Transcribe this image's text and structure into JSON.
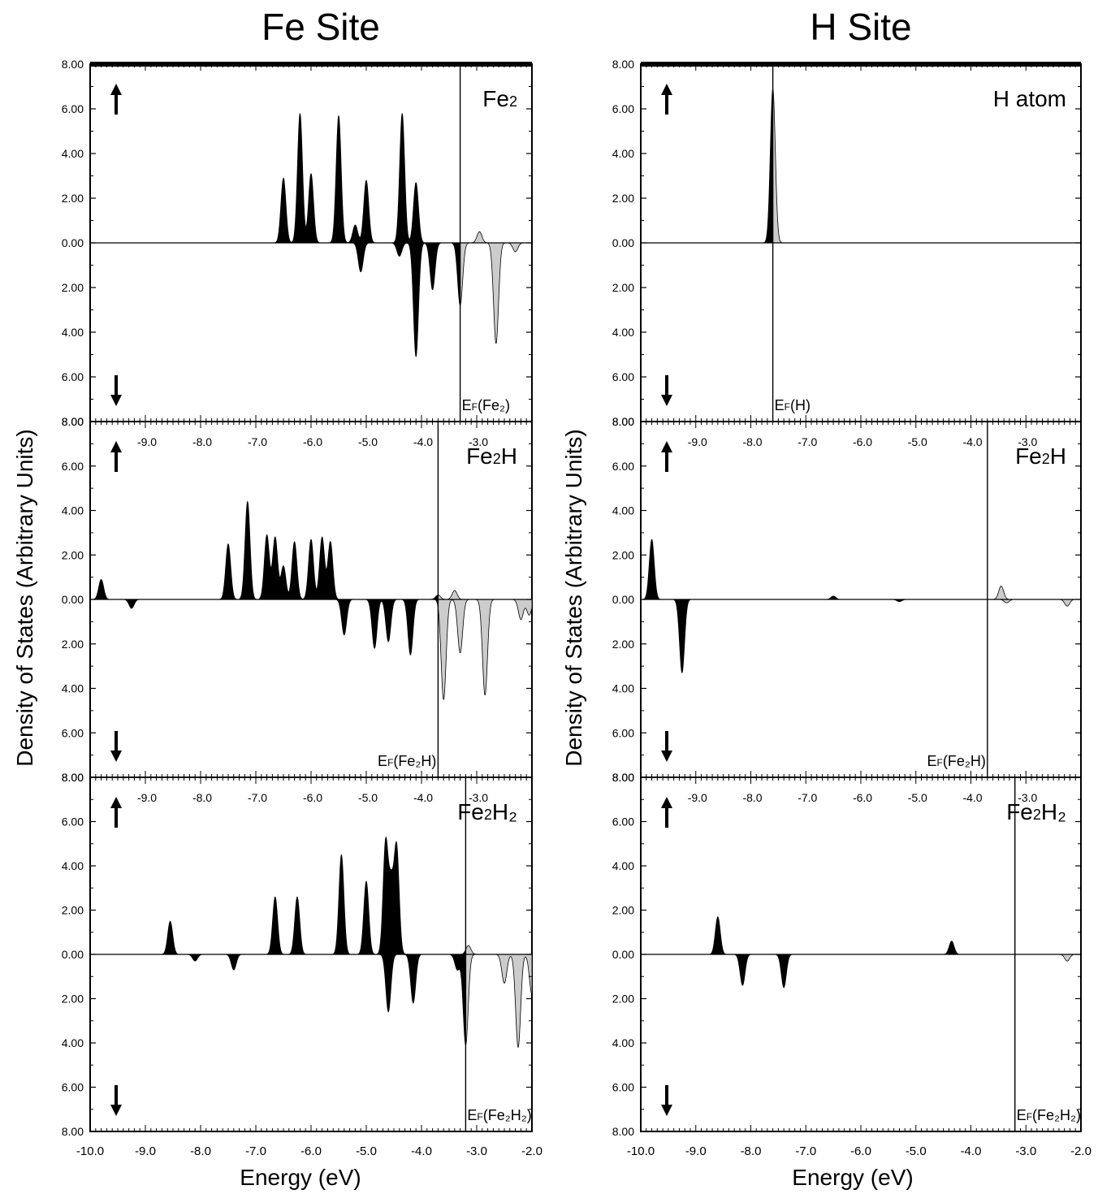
{
  "columns": [
    {
      "title": "Fe Site",
      "ylabel": "Density of States (Arbitrary Units)",
      "xlabel": "Energy (eV)"
    },
    {
      "title": "H Site",
      "ylabel": "Density of States (Arbitrary Units)",
      "xlabel": "Energy (eV)"
    }
  ],
  "chart_data": [
    {
      "type": "area",
      "id": "fe-fe2",
      "column": 0,
      "row": 0,
      "label_main": "Fe",
      "label_sub": "2",
      "label_tail": "",
      "ef_main": "E",
      "ef_sub": "F",
      "ef_text": "(Fe₂)",
      "ef_value": -3.3,
      "xlim": [
        -10.0,
        -2.0
      ],
      "ylim": [
        -8,
        8
      ],
      "occupied_color": "#000000",
      "unoccupied_color": "#cccccc",
      "y_tick_labels": [
        "8.00",
        "6.00",
        "4.00",
        "2.00",
        "0.00",
        "2.00",
        "4.00",
        "6.00",
        "8.00"
      ],
      "x_tick_labels": [],
      "spin_up_peaks": [
        [
          -6.5,
          2.9
        ],
        [
          -6.2,
          5.8
        ],
        [
          -6.0,
          3.1
        ],
        [
          -5.5,
          5.7
        ],
        [
          -5.2,
          0.8
        ],
        [
          -5.0,
          2.8
        ],
        [
          -4.35,
          5.8
        ],
        [
          -4.1,
          2.7
        ],
        [
          -2.95,
          0.5
        ]
      ],
      "spin_down_peaks": [
        [
          -5.1,
          1.3
        ],
        [
          -4.4,
          0.6
        ],
        [
          -4.1,
          5.1
        ],
        [
          -3.8,
          2.1
        ],
        [
          -3.3,
          2.8
        ],
        [
          -2.65,
          4.5
        ],
        [
          -2.3,
          0.4
        ]
      ]
    },
    {
      "type": "area",
      "id": "fe-fe2h",
      "column": 0,
      "row": 1,
      "label_main": "Fe",
      "label_sub": "2",
      "label_tail": "H",
      "ef_main": "E",
      "ef_sub": "F",
      "ef_text": "(Fe₂H)",
      "ef_value": -3.7,
      "xlim": [
        -10.0,
        -2.0
      ],
      "ylim": [
        -8,
        8
      ],
      "occupied_color": "#000000",
      "unoccupied_color": "#cccccc",
      "y_tick_labels": [
        "8.00",
        "6.00",
        "4.00",
        "2.00",
        "0.00",
        "2.00",
        "4.00",
        "6.00",
        "8.00"
      ],
      "x_tick_labels": [
        "-9.0",
        "-8.0",
        "-7.0",
        "-6.0",
        "-5.0",
        "-4.0",
        "-3.0"
      ],
      "spin_up_peaks": [
        [
          -9.8,
          0.9
        ],
        [
          -7.5,
          2.5
        ],
        [
          -7.15,
          4.4
        ],
        [
          -6.8,
          2.9
        ],
        [
          -6.65,
          2.8
        ],
        [
          -6.5,
          1.5
        ],
        [
          -6.3,
          2.6
        ],
        [
          -6.0,
          2.7
        ],
        [
          -5.8,
          2.8
        ],
        [
          -5.65,
          2.6
        ],
        [
          -3.7,
          0.2
        ],
        [
          -3.4,
          0.4
        ]
      ],
      "spin_down_peaks": [
        [
          -9.25,
          0.4
        ],
        [
          -5.4,
          1.6
        ],
        [
          -4.85,
          2.2
        ],
        [
          -4.6,
          1.9
        ],
        [
          -4.2,
          2.5
        ],
        [
          -3.6,
          4.5
        ],
        [
          -3.3,
          2.4
        ],
        [
          -2.85,
          4.3
        ],
        [
          -2.2,
          0.9
        ],
        [
          -2.05,
          0.7
        ]
      ]
    },
    {
      "type": "area",
      "id": "fe-fe2h2",
      "column": 0,
      "row": 2,
      "label_main": "Fe",
      "label_sub": "2",
      "label_tail": "H₂",
      "ef_main": "E",
      "ef_sub": "F",
      "ef_text": "(Fe₂H₂)",
      "ef_value": -3.2,
      "xlim": [
        -10.0,
        -2.0
      ],
      "ylim": [
        -8,
        8
      ],
      "occupied_color": "#000000",
      "unoccupied_color": "#cccccc",
      "y_tick_labels": [
        "8.00",
        "6.00",
        "4.00",
        "2.00",
        "0.00",
        "2.00",
        "4.00",
        "6.00",
        "8.00"
      ],
      "x_tick_labels": [
        "-9.0",
        "-8.0",
        "-7.0",
        "-6.0",
        "-5.0",
        "-4.0",
        "-3.0"
      ],
      "spin_up_peaks": [
        [
          -8.55,
          1.5
        ],
        [
          -6.65,
          2.6
        ],
        [
          -6.25,
          2.6
        ],
        [
          -5.45,
          4.5
        ],
        [
          -5.0,
          3.3
        ],
        [
          -4.65,
          5.0
        ],
        [
          -4.45,
          4.8
        ],
        [
          -4.55,
          3.0
        ],
        [
          -3.15,
          0.4
        ]
      ],
      "spin_down_peaks": [
        [
          -8.1,
          0.3
        ],
        [
          -7.4,
          0.7
        ],
        [
          -4.6,
          2.6
        ],
        [
          -4.15,
          2.2
        ],
        [
          -3.35,
          0.7
        ],
        [
          -3.2,
          4.1
        ],
        [
          -2.5,
          1.3
        ],
        [
          -2.25,
          4.2
        ],
        [
          -2.0,
          1.8
        ]
      ]
    },
    {
      "type": "area",
      "id": "h-atom",
      "column": 1,
      "row": 0,
      "label_main": "H atom",
      "label_sub": "",
      "label_tail": "",
      "ef_main": "E",
      "ef_sub": "F",
      "ef_text": "(H)",
      "ef_value": -7.6,
      "xlim": [
        -10.0,
        -2.0
      ],
      "ylim": [
        -8,
        8
      ],
      "occupied_color": "#000000",
      "unoccupied_color": "#cccccc",
      "y_tick_labels": [
        "8.00",
        "6.00",
        "4.00",
        "2.00",
        "0.00",
        "2.00",
        "4.00",
        "6.00",
        "8.00"
      ],
      "x_tick_labels": [],
      "spin_up_peaks": [
        [
          -7.6,
          6.9
        ]
      ],
      "spin_down_peaks": []
    },
    {
      "type": "area",
      "id": "h-fe2h",
      "column": 1,
      "row": 1,
      "label_main": "Fe",
      "label_sub": "2",
      "label_tail": "H",
      "ef_main": "E",
      "ef_sub": "F",
      "ef_text": "(Fe₂H)",
      "ef_value": -3.7,
      "xlim": [
        -10.0,
        -2.0
      ],
      "ylim": [
        -8,
        8
      ],
      "occupied_color": "#000000",
      "unoccupied_color": "#cccccc",
      "y_tick_labels": [
        "8.00",
        "6.00",
        "4.00",
        "2.00",
        "0.00",
        "2.00",
        "4.00",
        "6.00",
        "8.00"
      ],
      "x_tick_labels": [
        "-9.0",
        "-8.0",
        "-7.0",
        "-6.0",
        "-5.0",
        "-4.0",
        "-3.0"
      ],
      "spin_up_peaks": [
        [
          -9.8,
          2.7
        ],
        [
          -6.5,
          0.15
        ],
        [
          -3.45,
          0.6
        ]
      ],
      "spin_down_peaks": [
        [
          -9.25,
          3.3
        ],
        [
          -5.3,
          0.1
        ],
        [
          -3.35,
          0.15
        ],
        [
          -2.25,
          0.3
        ]
      ]
    },
    {
      "type": "area",
      "id": "h-fe2h2",
      "column": 1,
      "row": 2,
      "label_main": "Fe",
      "label_sub": "2",
      "label_tail": "H₂",
      "ef_main": "E",
      "ef_sub": "F",
      "ef_text": "(Fe₂H₂)",
      "ef_value": -3.2,
      "xlim": [
        -10.0,
        -2.0
      ],
      "ylim": [
        -8,
        8
      ],
      "occupied_color": "#000000",
      "unoccupied_color": "#cccccc",
      "y_tick_labels": [
        "8.00",
        "6.00",
        "4.00",
        "2.00",
        "0.00",
        "2.00",
        "4.00",
        "6.00",
        "8.00"
      ],
      "x_tick_labels": [
        "-9.0",
        "-8.0",
        "-7.0",
        "-6.0",
        "-5.0",
        "-4.0",
        "-3.0"
      ],
      "spin_up_peaks": [
        [
          -8.6,
          1.7
        ],
        [
          -4.35,
          0.6
        ]
      ],
      "spin_down_peaks": [
        [
          -8.15,
          1.4
        ],
        [
          -7.4,
          1.5
        ],
        [
          -2.25,
          0.3
        ]
      ]
    }
  ],
  "bottom_x_tick_labels": [
    "-10.0",
    "-9.0",
    "-8.0",
    "-7.0",
    "-6.0",
    "-5.0",
    "-4.0",
    "-3.0",
    "-2.0"
  ]
}
